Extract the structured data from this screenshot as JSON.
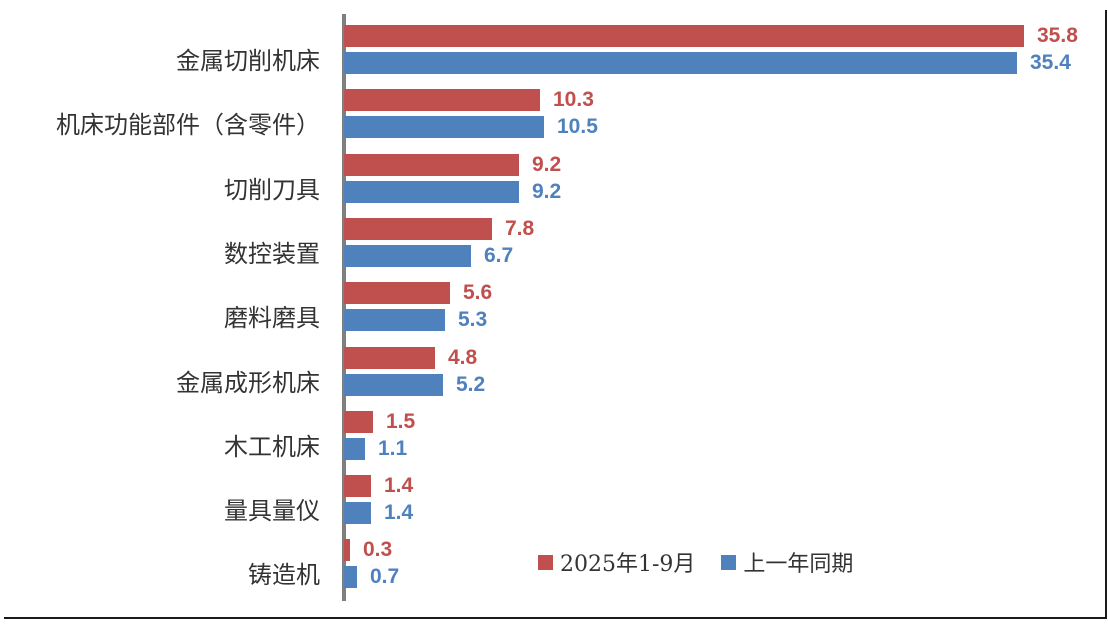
{
  "chart_data": {
    "type": "bar",
    "orientation": "horizontal",
    "title": "",
    "xlabel": "",
    "ylabel": "",
    "xlim": [
      0,
      36
    ],
    "grid": false,
    "legend_position": "bottom-inside",
    "value_labels": true,
    "axis_color": "#7F7F7F",
    "category_label_color": "#333333",
    "categories": [
      "金属切削机床",
      "机床功能部件（含零件）",
      "切削刀具",
      "数控装置",
      "磨料磨具",
      "金属成形机床",
      "木工机床",
      "量具量仪",
      "铸造机"
    ],
    "series": [
      {
        "name": "2025年1-9月",
        "color": "#C0504D",
        "values": [
          35.8,
          10.3,
          9.2,
          7.8,
          5.6,
          4.8,
          1.5,
          1.4,
          0.3
        ]
      },
      {
        "name": "上一年同期",
        "color": "#4F81BD",
        "values": [
          35.4,
          10.5,
          9.2,
          6.7,
          5.3,
          5.2,
          1.1,
          1.4,
          0.7
        ]
      }
    ]
  },
  "frame": {
    "background": "#ffffff",
    "border_color": "#1a1a1a"
  }
}
